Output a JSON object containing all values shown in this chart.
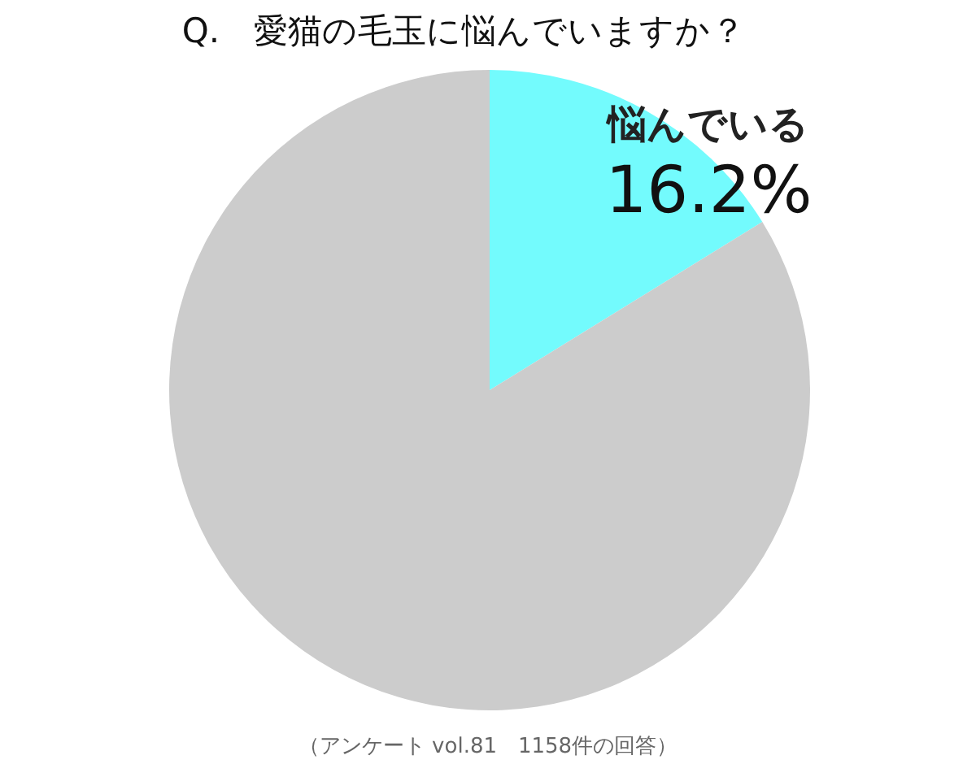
{
  "chart_data": {
    "type": "pie",
    "title": "Q.　愛猫の毛玉に悩んでいますか？",
    "categories": [
      "悩んでいる",
      null
    ],
    "values": [
      16.2,
      83.8
    ],
    "colors": [
      "#73fbfd",
      "#cccccc"
    ],
    "value_labels": [
      "16.2%",
      null
    ],
    "annotations": [
      "（アンケート vol.81　1158件の回答）"
    ]
  }
}
